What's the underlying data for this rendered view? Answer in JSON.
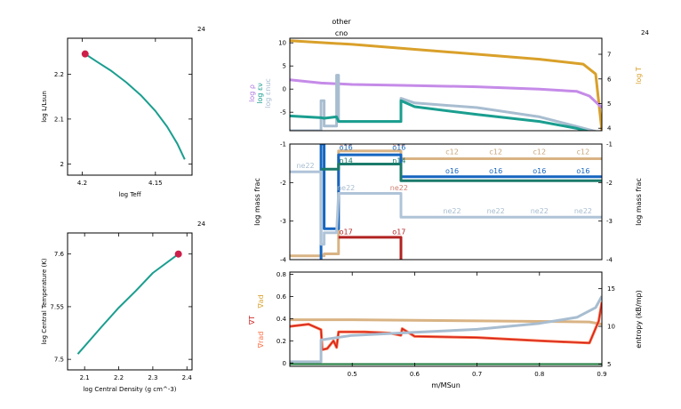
{
  "chart_data": [
    {
      "id": "hr",
      "type": "line",
      "model_number": "24",
      "xlabel": "log Teff",
      "ylabel": "log L/Lsun",
      "xlim": [
        4.21,
        4.125
      ],
      "ylim": [
        1.975,
        2.28
      ],
      "xticks": [
        4.2,
        4.15
      ],
      "xtick_labels": [
        "4.2",
        "4.15"
      ],
      "yticks": [
        2.0,
        2.1,
        2.2
      ],
      "ytick_labels": [
        "2",
        "2.1",
        "2.2"
      ],
      "series": [
        {
          "color": "#1a9e8f",
          "points": [
            [
              4.198,
              2.245
            ],
            [
              4.19,
              2.228
            ],
            [
              4.18,
              2.207
            ],
            [
              4.17,
              2.182
            ],
            [
              4.16,
              2.153
            ],
            [
              4.15,
              2.118
            ],
            [
              4.142,
              2.083
            ],
            [
              4.135,
              2.045
            ],
            [
              4.13,
              2.01
            ]
          ]
        }
      ],
      "marker": {
        "point": [
          4.198,
          2.245
        ],
        "color": "#cc1f4a"
      }
    },
    {
      "id": "central",
      "type": "line",
      "model_number": "24",
      "xlabel": "log Central Density (g cm^-3)",
      "ylabel": "log Central Temperature (K)",
      "xlim": [
        2.05,
        2.415
      ],
      "ylim": [
        7.49,
        7.62
      ],
      "xticks": [
        2.1,
        2.2,
        2.3,
        2.4
      ],
      "xtick_labels": [
        "2.1",
        "2.2",
        "2.3",
        "2.4"
      ],
      "yticks": [
        7.5,
        7.55,
        7.6
      ],
      "ytick_labels": [
        "7.5",
        "7.55",
        "7.6"
      ],
      "series": [
        {
          "color": "#1a9e8f",
          "points": [
            [
              2.08,
              7.505
            ],
            [
              2.15,
              7.531
            ],
            [
              2.2,
              7.549
            ],
            [
              2.25,
              7.565
            ],
            [
              2.3,
              7.582
            ],
            [
              2.375,
              7.6
            ]
          ]
        }
      ],
      "marker": {
        "point": [
          2.375,
          7.6
        ],
        "color": "#cc1f4a"
      }
    },
    {
      "id": "profile-top",
      "type": "line",
      "model_number": "24",
      "top_annotation": [
        "other",
        "cno"
      ],
      "xlim": [
        0.4,
        0.9
      ],
      "ylim": [
        -9,
        11
      ],
      "yticks": [
        -5,
        0,
        5,
        10
      ],
      "ytick_labels": [
        "-5",
        "0",
        "5",
        "10"
      ],
      "ylabel_parts": [
        {
          "text": "log ρ",
          "color": "#b07be0"
        },
        {
          "text": "log εν",
          "color": "#1a9e8f"
        },
        {
          "text": "log εnuc",
          "color": "#a8bdd0"
        }
      ],
      "right_ylabel": {
        "text": "log T",
        "color": "#d9a02a"
      },
      "right_ylim": [
        3.9,
        7.65
      ],
      "right_yticks": [
        4,
        5,
        6,
        7
      ],
      "right_ytick_labels": [
        "4",
        "5",
        "6",
        "7"
      ],
      "series": [
        {
          "name": "log T",
          "color": "#d9a02a",
          "axis": "right",
          "points": [
            [
              0.4,
              7.55
            ],
            [
              0.5,
              7.4
            ],
            [
              0.6,
              7.2
            ],
            [
              0.7,
              7.0
            ],
            [
              0.8,
              6.8
            ],
            [
              0.87,
              6.6
            ],
            [
              0.89,
              6.2
            ],
            [
              0.9,
              3.9
            ]
          ]
        },
        {
          "name": "log ρ",
          "color": "#c58be8",
          "axis": "left",
          "points": [
            [
              0.4,
              2.0
            ],
            [
              0.45,
              1.3
            ],
            [
              0.5,
              1.0
            ],
            [
              0.58,
              0.8
            ],
            [
              0.7,
              0.5
            ],
            [
              0.8,
              0.0
            ],
            [
              0.86,
              -0.5
            ],
            [
              0.88,
              -1.5
            ],
            [
              0.9,
              -4.0
            ]
          ]
        },
        {
          "name": "log εnuc",
          "color": "#a8bdd0",
          "axis": "left",
          "points": [
            [
              0.4,
              -9
            ],
            [
              0.45,
              -9
            ],
            [
              0.45,
              -2.5
            ],
            [
              0.455,
              -2.5
            ],
            [
              0.455,
              -8
            ],
            [
              0.475,
              -8
            ],
            [
              0.475,
              3
            ],
            [
              0.478,
              3
            ],
            [
              0.478,
              -7
            ],
            [
              0.578,
              -7
            ],
            [
              0.578,
              -2
            ],
            [
              0.6,
              -3
            ],
            [
              0.7,
              -4
            ],
            [
              0.8,
              -6
            ],
            [
              0.9,
              -9.5
            ]
          ]
        },
        {
          "name": "log εν",
          "color": "#1a9e8f",
          "axis": "left",
          "points": [
            [
              0.4,
              -5.8
            ],
            [
              0.45,
              -6.2
            ],
            [
              0.455,
              -6.3
            ],
            [
              0.475,
              -6.0
            ],
            [
              0.478,
              -7.0
            ],
            [
              0.578,
              -7.0
            ],
            [
              0.578,
              -2.5
            ],
            [
              0.6,
              -3.8
            ],
            [
              0.7,
              -5.5
            ],
            [
              0.8,
              -7.0
            ],
            [
              0.86,
              -8.5
            ],
            [
              0.9,
              -10
            ]
          ]
        }
      ]
    },
    {
      "id": "profile-mid",
      "type": "line",
      "xlim": [
        0.4,
        0.9
      ],
      "ylim": [
        -4,
        -1
      ],
      "yticks": [
        -4,
        -3,
        -2,
        -1
      ],
      "ytick_labels": [
        "-4",
        "-3",
        "-2",
        "-1"
      ],
      "ylabel": "log mass frac",
      "right_ylabel": "log mass frac",
      "series": [
        {
          "name": "c12",
          "color": "#d9b384",
          "label_x": [
            0.49,
            0.6,
            0.7,
            0.8,
            0.88
          ],
          "points": [
            [
              0.4,
              -3.9
            ],
            [
              0.455,
              -3.9
            ],
            [
              0.455,
              -3.85
            ],
            [
              0.478,
              -3.85
            ],
            [
              0.478,
              -1.18
            ],
            [
              0.578,
              -1.18
            ],
            [
              0.578,
              -1.38
            ],
            [
              0.9,
              -1.38
            ]
          ]
        },
        {
          "name": "o16",
          "color": "#1565c0",
          "label_x": [
            0.49,
            0.6,
            0.7,
            0.8,
            0.88
          ],
          "points": [
            [
              0.4,
              -4.2
            ],
            [
              0.45,
              -4.2
            ],
            [
              0.45,
              -1.0
            ],
            [
              0.455,
              -1.0
            ],
            [
              0.455,
              -3.2
            ],
            [
              0.478,
              -3.2
            ],
            [
              0.478,
              -1.28
            ],
            [
              0.578,
              -1.28
            ],
            [
              0.578,
              -1.85
            ],
            [
              0.9,
              -1.85
            ]
          ]
        },
        {
          "name": "n14",
          "color": "#1a7a6a",
          "label_x": [
            0.49,
            0.575
          ],
          "points": [
            [
              0.45,
              -1.65
            ],
            [
              0.478,
              -1.65
            ],
            [
              0.478,
              -1.52
            ],
            [
              0.578,
              -1.52
            ],
            [
              0.578,
              -1.95
            ],
            [
              0.9,
              -1.95
            ]
          ]
        },
        {
          "name": "ne22",
          "color": "#b0c4d8",
          "label_x": [
            0.425,
            0.49,
            0.575,
            0.66,
            0.73,
            0.8,
            0.88
          ],
          "points": [
            [
              0.4,
              -1.72
            ],
            [
              0.45,
              -1.72
            ],
            [
              0.45,
              -3.6
            ],
            [
              0.455,
              -3.6
            ],
            [
              0.455,
              -3.3
            ],
            [
              0.475,
              -3.3
            ],
            [
              0.478,
              -2.28
            ],
            [
              0.578,
              -2.28
            ],
            [
              0.578,
              -2.9
            ],
            [
              0.9,
              -2.9
            ]
          ]
        },
        {
          "name": "o17",
          "color": "#b22222",
          "label_x": [
            0.49,
            0.575
          ],
          "points": [
            [
              0.478,
              -3.42
            ],
            [
              0.578,
              -3.42
            ],
            [
              0.578,
              -4.2
            ]
          ]
        }
      ],
      "labels": [
        {
          "text": "c12",
          "color": "#d08070",
          "x": 0.49,
          "y": -1.0
        },
        {
          "text": "c12",
          "color": "#d08070",
          "x": 0.575,
          "y": -1.0
        },
        {
          "text": "o16",
          "color": "#1565c0",
          "x": 0.49,
          "y": -1.1
        },
        {
          "text": "o16",
          "color": "#1565c0",
          "x": 0.575,
          "y": -1.1
        },
        {
          "text": "c12",
          "color": "#c9a67a",
          "x": 0.66,
          "y": -1.22
        },
        {
          "text": "c12",
          "color": "#c9a67a",
          "x": 0.73,
          "y": -1.22
        },
        {
          "text": "c12",
          "color": "#c9a67a",
          "x": 0.8,
          "y": -1.22
        },
        {
          "text": "c12",
          "color": "#c9a67a",
          "x": 0.87,
          "y": -1.22
        },
        {
          "text": "ne22",
          "color": "#a8bdd0",
          "x": 0.425,
          "y": -1.58
        },
        {
          "text": "n14",
          "color": "#1a7a6a",
          "x": 0.49,
          "y": -1.45
        },
        {
          "text": "n14",
          "color": "#1a7a6a",
          "x": 0.575,
          "y": -1.45
        },
        {
          "text": "o16",
          "color": "#1565c0",
          "x": 0.66,
          "y": -1.72
        },
        {
          "text": "o16",
          "color": "#1565c0",
          "x": 0.73,
          "y": -1.72
        },
        {
          "text": "o16",
          "color": "#1565c0",
          "x": 0.8,
          "y": -1.72
        },
        {
          "text": "o16",
          "color": "#1565c0",
          "x": 0.87,
          "y": -1.72
        },
        {
          "text": "ne22",
          "color": "#a8bdd0",
          "x": 0.49,
          "y": -2.15
        },
        {
          "text": "ne22",
          "color": "#d08070",
          "x": 0.575,
          "y": -2.15
        },
        {
          "text": "ne22",
          "color": "#a8bdd0",
          "x": 0.66,
          "y": -2.75
        },
        {
          "text": "ne22",
          "color": "#a8bdd0",
          "x": 0.73,
          "y": -2.75
        },
        {
          "text": "ne22",
          "color": "#a8bdd0",
          "x": 0.8,
          "y": -2.75
        },
        {
          "text": "ne22",
          "color": "#a8bdd0",
          "x": 0.87,
          "y": -2.75
        },
        {
          "text": "o17",
          "color": "#b22222",
          "x": 0.49,
          "y": -3.3
        },
        {
          "text": "o17",
          "color": "#b22222",
          "x": 0.575,
          "y": -3.3
        }
      ]
    },
    {
      "id": "profile-bottom",
      "type": "line",
      "xlabel": "m/MSun",
      "xlim": [
        0.4,
        0.9
      ],
      "xticks": [
        0.5,
        0.6,
        0.7,
        0.8,
        0.9
      ],
      "xtick_labels": [
        "0.5",
        "0.6",
        "0.7",
        "0.8",
        "0.9"
      ],
      "ylim": [
        -0.03,
        0.82
      ],
      "yticks": [
        0,
        0.2,
        0.4,
        0.6,
        0.8
      ],
      "ytick_labels": [
        "0",
        "0.2",
        "0.4",
        "0.6",
        "0.8"
      ],
      "left_labels": [
        {
          "text": "∇ad",
          "color": "#d9a02a"
        },
        {
          "text": "∇T",
          "color": "#cc1f1f"
        },
        {
          "text": "∇rad",
          "color": "#ff6a3d"
        }
      ],
      "right_ylabel": "entropy (kB/mp)",
      "right_ylim": [
        4.7,
        17.2
      ],
      "right_yticks": [
        5,
        10,
        15
      ],
      "right_ytick_labels": [
        "5",
        "10",
        "15"
      ],
      "series": [
        {
          "name": "∇ad",
          "color": "#d9b384",
          "axis": "left",
          "points": [
            [
              0.4,
              0.39
            ],
            [
              0.5,
              0.39
            ],
            [
              0.6,
              0.385
            ],
            [
              0.7,
              0.38
            ],
            [
              0.8,
              0.375
            ],
            [
              0.88,
              0.37
            ],
            [
              0.9,
              0.35
            ]
          ]
        },
        {
          "name": "∇rad",
          "color": "#ff6a3d",
          "axis": "left",
          "points": [
            [
              0.4,
              0.33
            ],
            [
              0.43,
              0.35
            ],
            [
              0.45,
              0.3
            ],
            [
              0.452,
              0.12
            ],
            [
              0.46,
              0.13
            ],
            [
              0.47,
              0.2
            ],
            [
              0.475,
              0.14
            ],
            [
              0.478,
              0.28
            ],
            [
              0.52,
              0.28
            ],
            [
              0.56,
              0.27
            ],
            [
              0.578,
              0.25
            ],
            [
              0.58,
              0.31
            ],
            [
              0.6,
              0.24
            ],
            [
              0.7,
              0.23
            ],
            [
              0.8,
              0.2
            ],
            [
              0.88,
              0.18
            ],
            [
              0.895,
              0.38
            ],
            [
              0.9,
              0.55
            ]
          ]
        },
        {
          "name": "∇T",
          "color": "#cc1f1f",
          "axis": "left",
          "points": [
            [
              0.4,
              0.33
            ],
            [
              0.43,
              0.35
            ],
            [
              0.45,
              0.3
            ],
            [
              0.452,
              0.12
            ],
            [
              0.46,
              0.13
            ],
            [
              0.47,
              0.2
            ],
            [
              0.475,
              0.14
            ],
            [
              0.478,
              0.28
            ],
            [
              0.52,
              0.28
            ],
            [
              0.56,
              0.27
            ],
            [
              0.578,
              0.25
            ],
            [
              0.58,
              0.31
            ],
            [
              0.6,
              0.24
            ],
            [
              0.7,
              0.23
            ],
            [
              0.8,
              0.2
            ],
            [
              0.88,
              0.18
            ],
            [
              0.895,
              0.38
            ],
            [
              0.9,
              0.55
            ]
          ]
        },
        {
          "name": "entropy",
          "color": "#a8bdd0",
          "axis": "right",
          "points": [
            [
              0.4,
              5.3
            ],
            [
              0.45,
              5.3
            ],
            [
              0.45,
              8.2
            ],
            [
              0.5,
              8.8
            ],
            [
              0.6,
              9.2
            ],
            [
              0.7,
              9.6
            ],
            [
              0.8,
              10.4
            ],
            [
              0.86,
              11.2
            ],
            [
              0.89,
              12.5
            ],
            [
              0.9,
              14
            ]
          ]
        },
        {
          "name": "green",
          "color": "#1a7a3a",
          "axis": "left",
          "points": [
            [
              0.4,
              -0.01
            ],
            [
              0.9,
              -0.01
            ]
          ]
        }
      ]
    }
  ]
}
